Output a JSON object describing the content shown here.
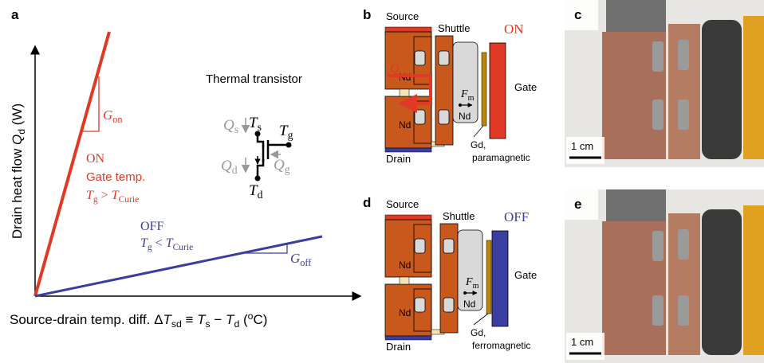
{
  "panel_a": {
    "label": "a",
    "y_axis_label": [
      "Drain heat flow ",
      "Q",
      "d",
      " (W)"
    ],
    "x_axis_label": [
      "Source-drain temp. diff. Δ",
      "T",
      "sd",
      " ≡ ",
      "T",
      "s",
      " − ",
      "T",
      "d",
      " (",
      "o",
      "C)"
    ],
    "on": {
      "slope_label": [
        "G",
        "on"
      ],
      "state": "ON",
      "gate_temp": "Gate temp.",
      "condition": [
        "T",
        "g",
        " > ",
        "T",
        "Curie"
      ]
    },
    "off": {
      "slope_label": [
        "G",
        "off"
      ],
      "state": "OFF",
      "condition": [
        "T",
        "g",
        " < ",
        "T",
        "Curie"
      ]
    },
    "transistor": {
      "title": "Thermal transistor",
      "Ts": [
        "T",
        "s"
      ],
      "Tg": [
        "T",
        "g"
      ],
      "Td": [
        "T",
        "d"
      ],
      "Qs": [
        "Q",
        "s"
      ],
      "Qd": [
        "Q",
        "d"
      ],
      "Qg": [
        "Q",
        "g"
      ]
    }
  },
  "panel_b": {
    "label": "b",
    "source": "Source",
    "shuttle": "Shuttle",
    "state": "ON",
    "nd_top": "Nd",
    "nd_bottom": "Nd",
    "nd_shuttle": "Nd",
    "heat": "Q",
    "force": [
      "F",
      "m"
    ],
    "gate": "Gate",
    "gd": "Gd,",
    "gd_state": "paramagnetic",
    "drain": "Drain"
  },
  "panel_c": {
    "label": "c",
    "scale": "1 cm"
  },
  "panel_d": {
    "label": "d",
    "source": "Source",
    "shuttle": "Shuttle",
    "state": "OFF",
    "nd_top": "Nd",
    "nd_bottom": "Nd",
    "nd_shuttle": "Nd",
    "force": [
      "F",
      "m"
    ],
    "gate": "Gate",
    "gd": "Gd,",
    "gd_state": "ferromagnetic",
    "drain": "Drain"
  },
  "panel_e": {
    "label": "e",
    "scale": "1 cm"
  }
}
